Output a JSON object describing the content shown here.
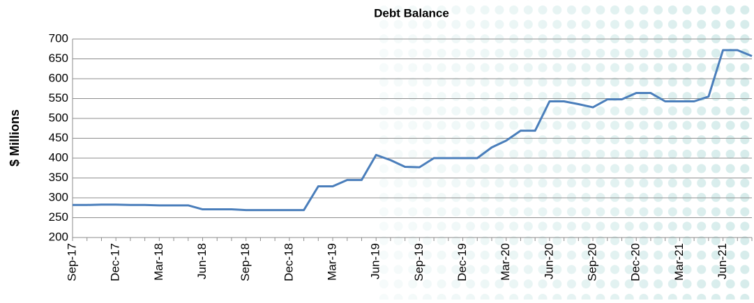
{
  "chart_data": {
    "type": "line",
    "title": "Debt Balance",
    "y_label": "$ Millions",
    "categories": [
      "Sep-17",
      null,
      null,
      "Dec-17",
      null,
      null,
      "Mar-18",
      null,
      null,
      "Jun-18",
      null,
      null,
      "Sep-18",
      null,
      null,
      "Dec-18",
      null,
      null,
      "Mar-19",
      null,
      null,
      "Jun-19",
      null,
      null,
      "Sep-19",
      null,
      null,
      "Dec-19",
      null,
      null,
      "Mar-20",
      null,
      null,
      "Jun-20",
      null,
      null,
      "Sep-20",
      null,
      null,
      "Dec-20",
      null,
      null,
      "Mar-21",
      null,
      null,
      "Jun-21",
      null,
      null
    ],
    "series": [
      {
        "name": "Debt Balance",
        "color": "#4a7ebb",
        "values": [
          282,
          282,
          283,
          283,
          282,
          282,
          281,
          281,
          281,
          271,
          271,
          271,
          269,
          269,
          269,
          269,
          269,
          329,
          329,
          345,
          345,
          408,
          395,
          378,
          377,
          400,
          400,
          400,
          400,
          427,
          444,
          469,
          469,
          543,
          543,
          536,
          528,
          548,
          548,
          564,
          564,
          543,
          543,
          543,
          555,
          672,
          672,
          657
        ]
      }
    ],
    "ylim": [
      200,
      700
    ],
    "yticks": [
      200,
      250,
      300,
      350,
      400,
      450,
      500,
      550,
      600,
      650,
      700
    ],
    "grid": true
  }
}
